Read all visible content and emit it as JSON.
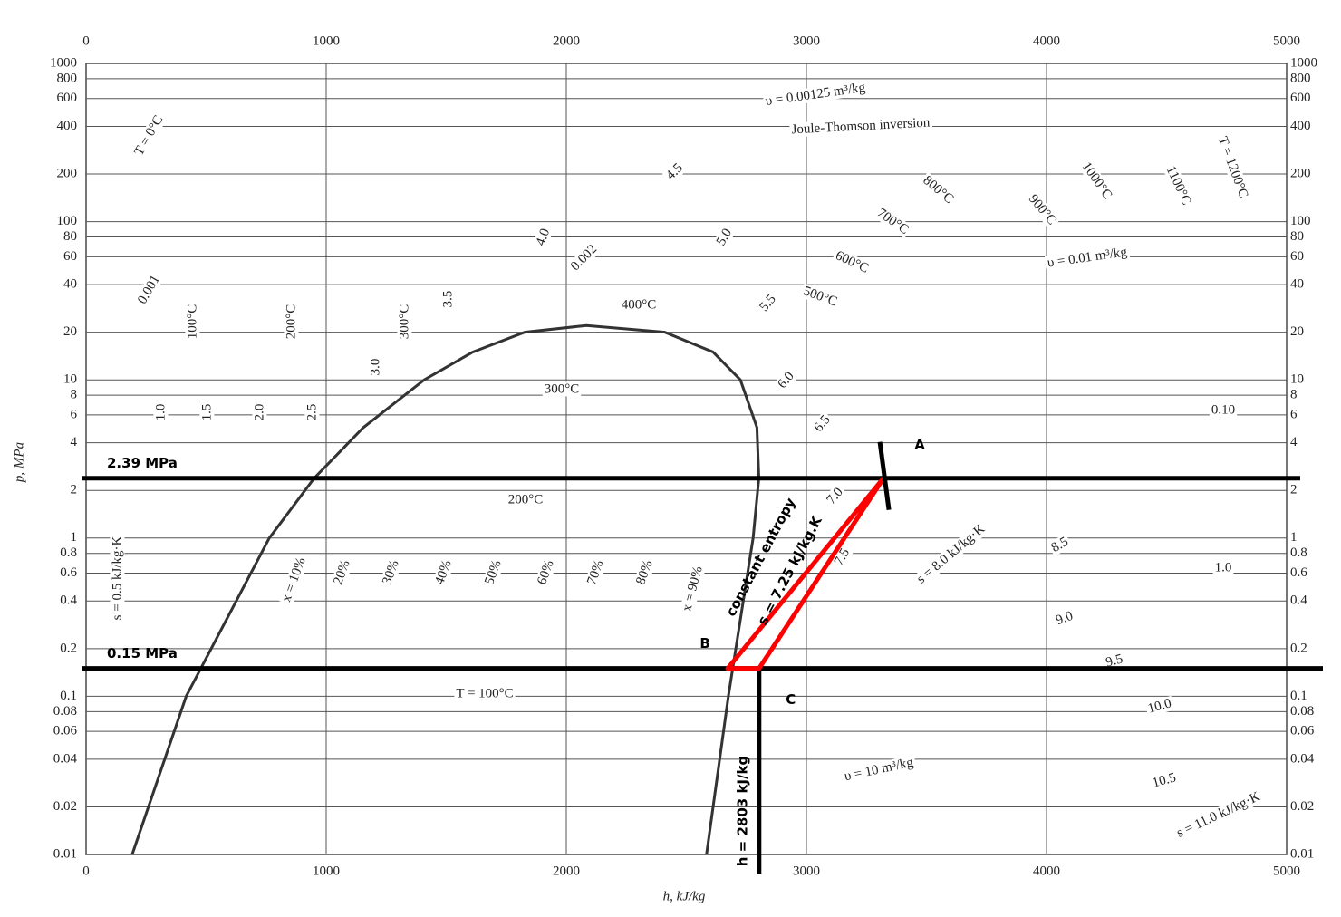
{
  "chart_data": {
    "type": "line",
    "xlabel": "h, kJ/kg",
    "ylabel": "p, MPa",
    "xlim": [
      0,
      5000
    ],
    "xticks": [
      0,
      1000,
      2000,
      3000,
      4000,
      5000
    ],
    "ylim": [
      0.01,
      1000
    ],
    "ylog": true,
    "yticks": [
      1000,
      800,
      600,
      400,
      200,
      100,
      80,
      60,
      40,
      20,
      10,
      8,
      6,
      4,
      2,
      1,
      0.8,
      0.6,
      0.4,
      0.2,
      0.1,
      0.08,
      0.06,
      0.04,
      0.02,
      0.01
    ],
    "grid": true,
    "series": [
      {
        "color": "#333333",
        "x": [
          192,
          417,
          763,
          950,
          1155,
          1408,
          1611,
          1827,
          2084,
          2410,
          2611,
          2725,
          2794,
          2802,
          2778,
          2675,
          2584
        ],
        "values": [
          0.01,
          0.1,
          1,
          2.39,
          5,
          10,
          15,
          20,
          22.06,
          20,
          15,
          10,
          5,
          2.39,
          1,
          0.1,
          0.01
        ]
      }
    ],
    "points": [
      {
        "label": "A",
        "h": 3321,
        "p": 2.39
      },
      {
        "label": "B",
        "h": 2672,
        "p": 0.15
      },
      {
        "label": "C",
        "h": 2803,
        "p": 0.15
      }
    ],
    "process_color": "#ff0000",
    "pressure_lines": [
      {
        "label": "2.39 MPa",
        "p": 2.39
      },
      {
        "label": "0.15 MPa",
        "p": 0.15
      }
    ],
    "enthalpy_line": {
      "label": "h = 2803 kJ/kg",
      "h": 2803
    },
    "process_labels": [
      "constant entropy",
      "s = 7.25 kJ/kg.K"
    ],
    "curve_labels": [
      "T = 0°C",
      "υ = 0.00125 m³/kg",
      "Joule-Thomson inversion",
      "T = 1200°C",
      "1100°C",
      "1000°C",
      "900°C",
      "800°C",
      "700°C",
      "600°C",
      "500°C",
      "400°C",
      "300°C",
      "200°C",
      "T = 100°C",
      "100°C",
      "200°C",
      "300°C",
      "0.001",
      "0.002",
      "υ = 0.01 m³/kg",
      "0.10",
      "1.0",
      "10.0",
      "υ = 10 m³/kg",
      "4.5",
      "4.0",
      "5.0",
      "5.5",
      "6.0",
      "6.5",
      "7.0",
      "7.5",
      "s = 8.0 kJ/kg·K",
      "8.5",
      "9.0",
      "9.5",
      "10.5",
      "s = 11.0 kJ/kg·K",
      "s = 0.5 kJ/kg·K",
      "1.0",
      "1.5",
      "2.0",
      "2.5",
      "3.0",
      "3.5",
      "x = 10%",
      "20%",
      "30%",
      "40%",
      "50%",
      "60%",
      "70%",
      "80%",
      "x = 90%"
    ]
  }
}
